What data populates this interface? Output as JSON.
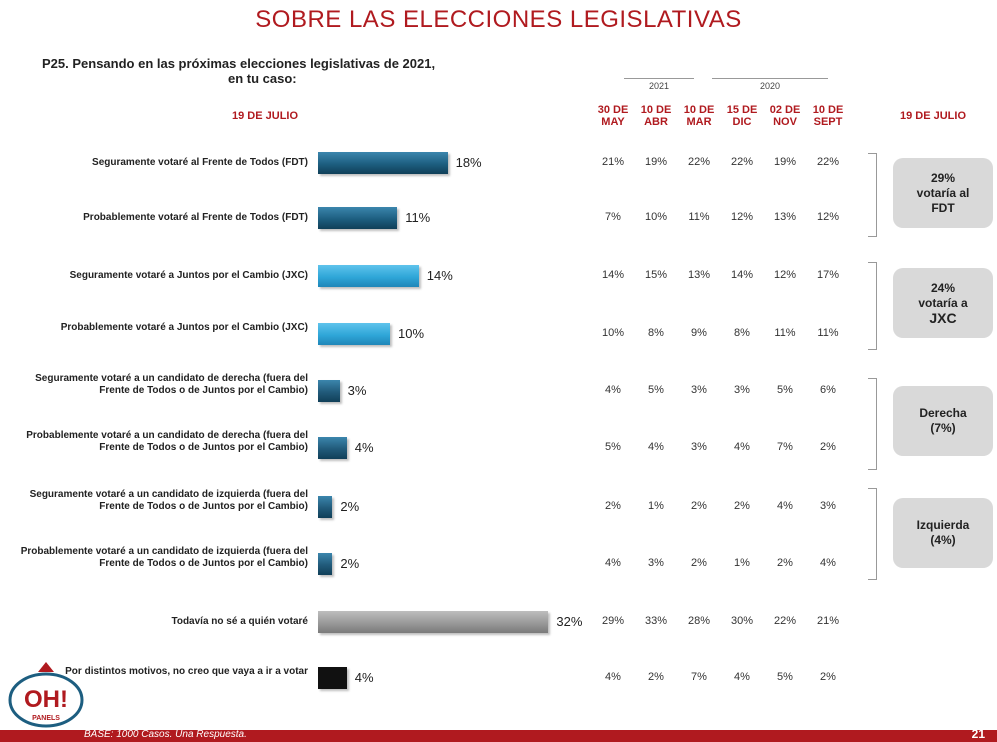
{
  "title": "SOBRE LAS ELECCIONES LEGISLATIVAS",
  "question_line1": "P25. Pensando en las próximas elecciones legislativas de 2021,",
  "question_line2": "en tu caso:",
  "date_left": "19 DE JULIO",
  "date_right": "19 DE JULIO",
  "years": [
    "2021",
    "2020"
  ],
  "columns": [
    "30 DE MAY",
    "10 DE ABR",
    "10 DE MAR",
    "15 DE DIC",
    "02 DE NOV",
    "10 DE SEPT"
  ],
  "summaries": [
    {
      "line1": "29%",
      "line2": "votaría al",
      "line3": "FDT"
    },
    {
      "line1": "24%",
      "line2": "votaría a",
      "line3": "JXC"
    },
    {
      "line1": "Derecha",
      "line2": "(7%)",
      "line3": ""
    },
    {
      "line1": "Izquierda",
      "line2": "(4%)",
      "line3": ""
    }
  ],
  "footer": "BASE: 1000 Casos. Una Respuesta.",
  "page_number": "21",
  "logo_text": "OH!",
  "logo_subtext": "PANELS",
  "colors": {
    "fdt": "#1d5e80",
    "jxc": "#2fa6d8",
    "otros": "#215a7a",
    "indecisos": "#999999",
    "no_vota": "#111111",
    "accent": "#b01a1f"
  },
  "chart_data": {
    "type": "bar",
    "orientation": "horizontal",
    "title": "SOBRE LAS ELECCIONES LEGISLATIVAS",
    "categories": [
      "Seguramente votaré al Frente de Todos (FDT)",
      "Probablemente votaré al Frente de Todos (FDT)",
      "Seguramente votaré a Juntos por el Cambio (JXC)",
      "Probablemente votaré a Juntos por el Cambio (JXC)",
      "Seguramente votaré a un candidato de derecha (fuera del Frente de Todos o de Juntos por el Cambio)",
      "Probablemente votaré a un candidato de derecha (fuera del Frente de Todos o de Juntos por el Cambio)",
      "Seguramente votaré a un candidato de izquierda (fuera del Frente de Todos o de Juntos por el Cambio)",
      "Probablemente votaré a un candidato de izquierda (fuera del Frente de Todos o de Juntos por el Cambio)",
      "Todavía no sé a quién votaré",
      "Por distintos motivos, no creo que vaya a ir a votar"
    ],
    "values": [
      18,
      11,
      14,
      10,
      3,
      4,
      2,
      2,
      32,
      4
    ],
    "value_labels": [
      "18%",
      "11%",
      "14%",
      "10%",
      "3%",
      "4%",
      "2%",
      "2%",
      "32%",
      "4%"
    ],
    "history": {
      "columns": [
        "30 DE MAY",
        "10 DE ABR",
        "10 DE MAR",
        "15 DE DIC",
        "02 DE NOV",
        "10 DE SEPT"
      ],
      "rows": [
        [
          "21%",
          "19%",
          "22%",
          "22%",
          "19%",
          "22%"
        ],
        [
          "7%",
          "10%",
          "11%",
          "12%",
          "13%",
          "12%"
        ],
        [
          "14%",
          "15%",
          "13%",
          "14%",
          "12%",
          "17%"
        ],
        [
          "10%",
          "8%",
          "9%",
          "8%",
          "11%",
          "11%"
        ],
        [
          "4%",
          "5%",
          "3%",
          "3%",
          "5%",
          "6%"
        ],
        [
          "5%",
          "4%",
          "3%",
          "4%",
          "7%",
          "2%"
        ],
        [
          "2%",
          "1%",
          "2%",
          "2%",
          "4%",
          "3%"
        ],
        [
          "4%",
          "3%",
          "2%",
          "1%",
          "2%",
          "4%"
        ],
        [
          "29%",
          "33%",
          "28%",
          "30%",
          "22%",
          "21%"
        ],
        [
          "4%",
          "2%",
          "7%",
          "4%",
          "5%",
          "2%"
        ]
      ]
    }
  }
}
